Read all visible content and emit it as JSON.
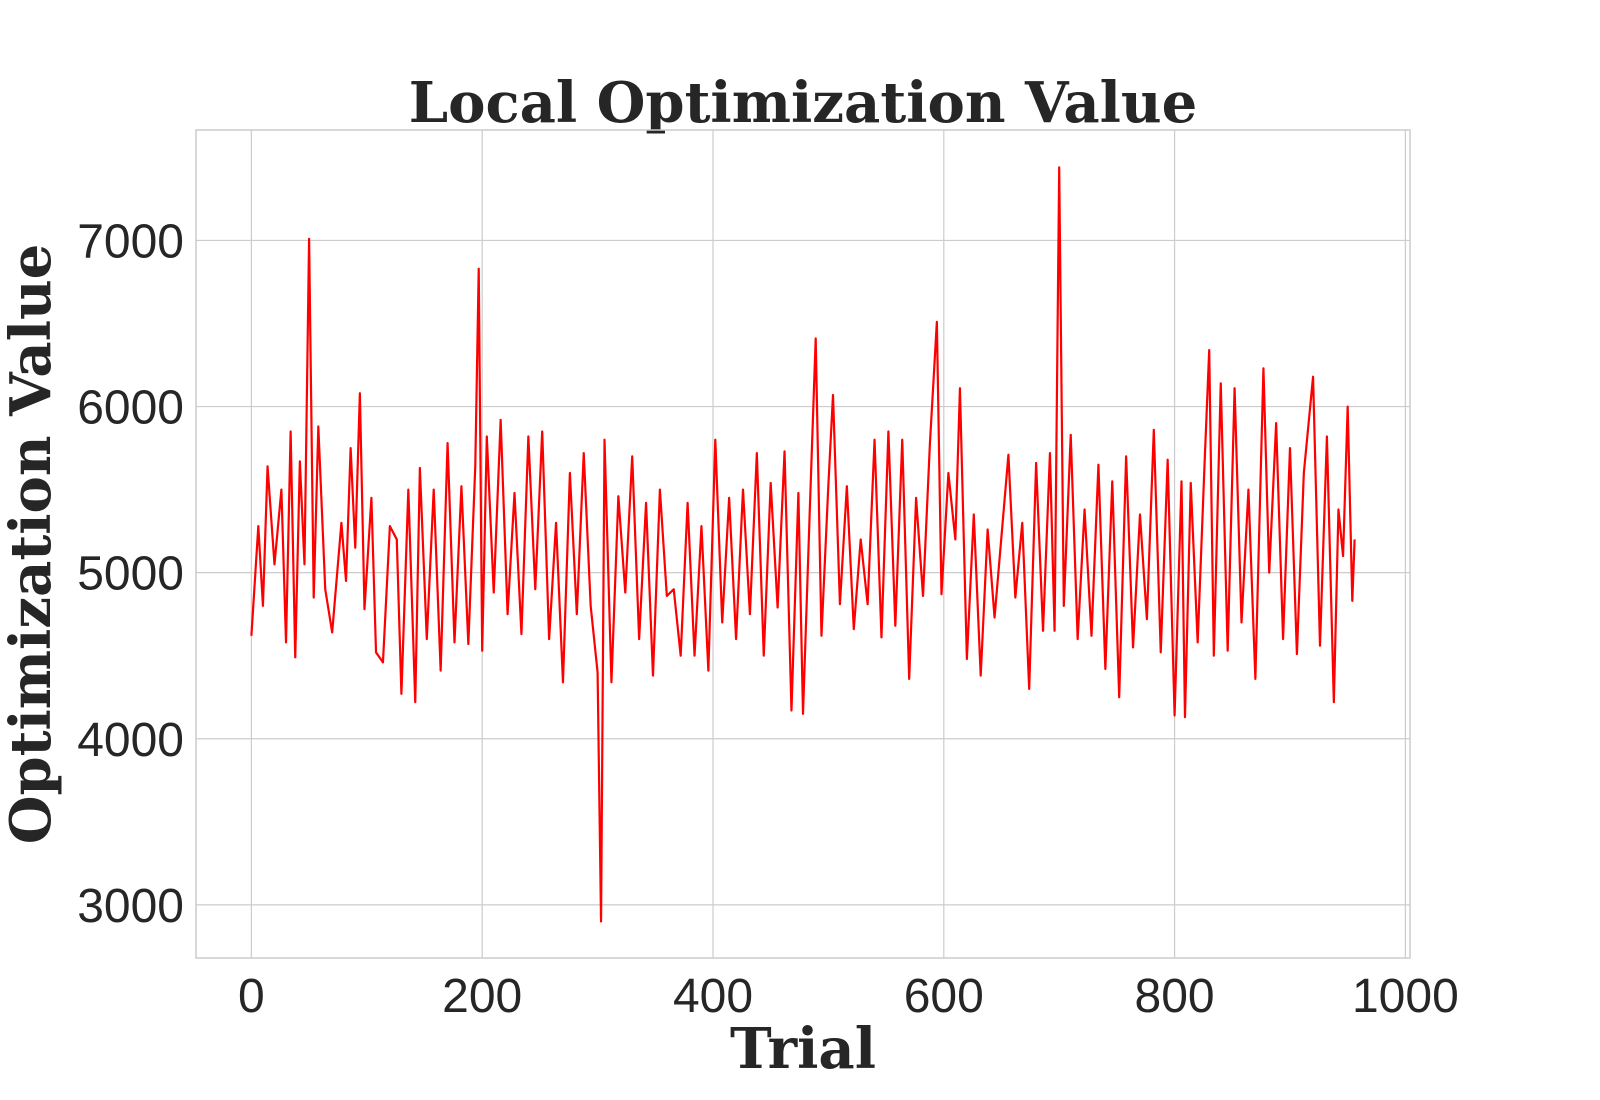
{
  "chart_data": {
    "type": "line",
    "title": "Local Optimization Value",
    "xlabel": "Trial",
    "ylabel": "Optimization Value",
    "xlim": [
      -48,
      1004
    ],
    "ylim": [
      2680,
      7665
    ],
    "xticks": [
      0,
      200,
      400,
      600,
      800,
      1000
    ],
    "yticks": [
      3000,
      4000,
      5000,
      6000,
      7000
    ],
    "grid": true,
    "series": [
      {
        "color": "#ff0000",
        "x": [
          0,
          6,
          10,
          14,
          20,
          26,
          30,
          34,
          38,
          42,
          46,
          50,
          54,
          58,
          64,
          70,
          78,
          82,
          86,
          90,
          94,
          98,
          104,
          108,
          114,
          120,
          126,
          130,
          136,
          142,
          146,
          152,
          158,
          164,
          170,
          176,
          182,
          188,
          194,
          197,
          200,
          204,
          210,
          216,
          222,
          228,
          234,
          240,
          246,
          252,
          258,
          264,
          270,
          276,
          282,
          288,
          294,
          300,
          303,
          306,
          312,
          318,
          324,
          330,
          336,
          342,
          348,
          354,
          360,
          366,
          372,
          378,
          384,
          390,
          396,
          402,
          408,
          414,
          420,
          426,
          432,
          438,
          444,
          450,
          456,
          462,
          468,
          474,
          478,
          484,
          489,
          494,
          500,
          504,
          510,
          516,
          522,
          528,
          534,
          540,
          546,
          552,
          558,
          564,
          570,
          576,
          582,
          588,
          594,
          598,
          604,
          610,
          614,
          620,
          626,
          632,
          638,
          644,
          650,
          656,
          662,
          668,
          674,
          680,
          686,
          692,
          696,
          700,
          704,
          710,
          716,
          722,
          728,
          734,
          740,
          746,
          752,
          758,
          764,
          770,
          776,
          782,
          788,
          794,
          800,
          806,
          809,
          814,
          820,
          826,
          830,
          834,
          840,
          846,
          852,
          858,
          864,
          870,
          877,
          882,
          888,
          894,
          900,
          906,
          912,
          920,
          926,
          932,
          938,
          942,
          946,
          950,
          954,
          956
        ],
        "values": [
          4620,
          5280,
          4800,
          5640,
          5050,
          5500,
          4580,
          5850,
          4490,
          5670,
          5050,
          7010,
          4850,
          5880,
          4900,
          4640,
          5300,
          4950,
          5750,
          5150,
          6080,
          4780,
          5450,
          4520,
          4460,
          5280,
          5200,
          4270,
          5500,
          4220,
          5630,
          4600,
          5500,
          4410,
          5780,
          4580,
          5520,
          4570,
          5640,
          6830,
          4530,
          5820,
          4880,
          5920,
          4750,
          5480,
          4630,
          5820,
          4900,
          5850,
          4600,
          5300,
          4340,
          5600,
          4750,
          5720,
          4800,
          4400,
          2900,
          5800,
          4340,
          5460,
          4880,
          5700,
          4600,
          5420,
          4380,
          5500,
          4860,
          4900,
          4500,
          5420,
          4500,
          5280,
          4410,
          5800,
          4700,
          5450,
          4600,
          5500,
          4750,
          5720,
          4500,
          5540,
          4790,
          5730,
          4170,
          5480,
          4150,
          5400,
          6410,
          4620,
          5530,
          6070,
          4810,
          5520,
          4660,
          5200,
          4810,
          5800,
          4610,
          5850,
          4680,
          5800,
          4360,
          5450,
          4860,
          5780,
          6510,
          4870,
          5600,
          5200,
          6110,
          4480,
          5350,
          4380,
          5260,
          4730,
          5220,
          5710,
          4850,
          5300,
          4300,
          5660,
          4650,
          5720,
          4650,
          7440,
          4800,
          5830,
          4600,
          5380,
          4620,
          5650,
          4420,
          5550,
          4250,
          5700,
          4550,
          5350,
          4720,
          5860,
          4520,
          5680,
          4140,
          5550,
          4130,
          5540,
          4580,
          5660,
          6340,
          4500,
          6140,
          4530,
          6110,
          4700,
          5500,
          4360,
          6230,
          5000,
          5900,
          4600,
          5750,
          4510,
          5600,
          6180,
          4560,
          5820,
          4220,
          5380,
          5100,
          6000,
          4830,
          5200
        ]
      }
    ]
  }
}
